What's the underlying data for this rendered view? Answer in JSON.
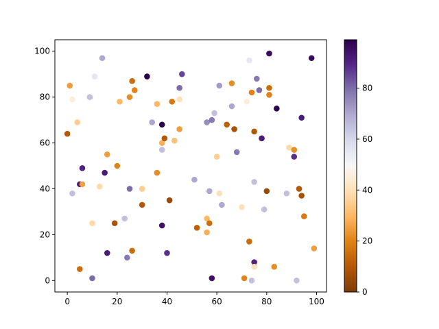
{
  "chart_data": {
    "type": "scatter",
    "title": "",
    "xlabel": "",
    "ylabel": "",
    "xlim": [
      -5,
      104
    ],
    "ylim": [
      -5,
      105
    ],
    "x_ticks": [
      0,
      20,
      40,
      60,
      80,
      100
    ],
    "y_ticks": [
      0,
      20,
      40,
      60,
      80,
      100
    ],
    "grid": false,
    "colorbar": {
      "cmap": "PuOr",
      "range": [
        0,
        99
      ],
      "ticks": [
        0,
        20,
        40,
        60,
        80
      ]
    },
    "points": [
      [
        0,
        64,
        10
      ],
      [
        1,
        85,
        25
      ],
      [
        2,
        79,
        45
      ],
      [
        2,
        38,
        65
      ],
      [
        4,
        69,
        35
      ],
      [
        5,
        42,
        92
      ],
      [
        5,
        5,
        15
      ],
      [
        6,
        49,
        90
      ],
      [
        6,
        42,
        25
      ],
      [
        9,
        80,
        65
      ],
      [
        10,
        1,
        80
      ],
      [
        10,
        25,
        38
      ],
      [
        11,
        89,
        55
      ],
      [
        13,
        41,
        38
      ],
      [
        14,
        97,
        70
      ],
      [
        15,
        47,
        92
      ],
      [
        16,
        55,
        25
      ],
      [
        16,
        12,
        92
      ],
      [
        19,
        25,
        8
      ],
      [
        20,
        50,
        20
      ],
      [
        21,
        78,
        30
      ],
      [
        23,
        27,
        65
      ],
      [
        24,
        10,
        78
      ],
      [
        25,
        80,
        22
      ],
      [
        25,
        40,
        80
      ],
      [
        26,
        87,
        15
      ],
      [
        26,
        13,
        15
      ],
      [
        27,
        83,
        20
      ],
      [
        30,
        40,
        35
      ],
      [
        30,
        33,
        10
      ],
      [
        32,
        89,
        99
      ],
      [
        34,
        69,
        70
      ],
      [
        36,
        77,
        30
      ],
      [
        36,
        47,
        22
      ],
      [
        38,
        68,
        99
      ],
      [
        38,
        60,
        28
      ],
      [
        38,
        57,
        65
      ],
      [
        38,
        24,
        95
      ],
      [
        39,
        62,
        10
      ],
      [
        40,
        12,
        88
      ],
      [
        41,
        35,
        5
      ],
      [
        42,
        78,
        18
      ],
      [
        43,
        61,
        32
      ],
      [
        45,
        84,
        80
      ],
      [
        45,
        79,
        40
      ],
      [
        45,
        66,
        25
      ],
      [
        46,
        90,
        85
      ],
      [
        51,
        44,
        70
      ],
      [
        52,
        23,
        12
      ],
      [
        56,
        69,
        75
      ],
      [
        56,
        27,
        30
      ],
      [
        56,
        21,
        28
      ],
      [
        57,
        25,
        15
      ],
      [
        57,
        39,
        70
      ],
      [
        58,
        70,
        78
      ],
      [
        58,
        1,
        95
      ],
      [
        59,
        73,
        65
      ],
      [
        60,
        54,
        35
      ],
      [
        61,
        85,
        72
      ],
      [
        61,
        38,
        40
      ],
      [
        62,
        33,
        70
      ],
      [
        64,
        68,
        12
      ],
      [
        66,
        86,
        22
      ],
      [
        66,
        76,
        70
      ],
      [
        67,
        66,
        8
      ],
      [
        68,
        56,
        78
      ],
      [
        70,
        32,
        40
      ],
      [
        71,
        1,
        20
      ],
      [
        72,
        78,
        45
      ],
      [
        73,
        96,
        55
      ],
      [
        73,
        17,
        15
      ],
      [
        74,
        82,
        20
      ],
      [
        74,
        0,
        65
      ],
      [
        75,
        65,
        10
      ],
      [
        75,
        43,
        65
      ],
      [
        75,
        8,
        90
      ],
      [
        75,
        6,
        40
      ],
      [
        76,
        88,
        78
      ],
      [
        77,
        83,
        80
      ],
      [
        78,
        62,
        92
      ],
      [
        79,
        31,
        65
      ],
      [
        80,
        39,
        5
      ],
      [
        81,
        99,
        96
      ],
      [
        81,
        84,
        15
      ],
      [
        81,
        81,
        20
      ],
      [
        83,
        6,
        22
      ],
      [
        84,
        75,
        99
      ],
      [
        88,
        38,
        65
      ],
      [
        89,
        58,
        38
      ],
      [
        91,
        57,
        22
      ],
      [
        91,
        54,
        88
      ],
      [
        92,
        0,
        65
      ],
      [
        93,
        40,
        10
      ],
      [
        94,
        71,
        92
      ],
      [
        94,
        37,
        8
      ],
      [
        95,
        28,
        18
      ],
      [
        98,
        97,
        96
      ],
      [
        99,
        14,
        25
      ]
    ]
  }
}
